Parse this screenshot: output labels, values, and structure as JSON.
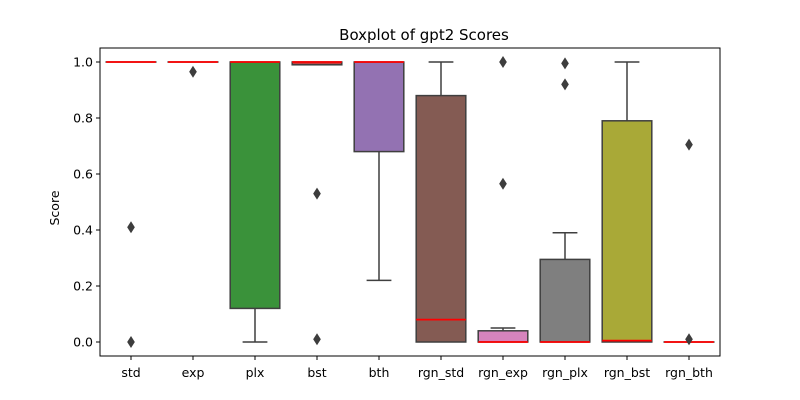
{
  "chart_data": {
    "type": "box",
    "title": "Boxplot of gpt2 Scores",
    "xlabel": "",
    "ylabel": "Score",
    "ylim": [
      -0.05,
      1.05
    ],
    "yticks": [
      "0.0",
      "0.2",
      "0.4",
      "0.6",
      "0.8",
      "1.0"
    ],
    "grid": false,
    "median_color": "#ff0000",
    "outline_color": "#3f3f3f",
    "categories": [
      "std",
      "exp",
      "plx",
      "bst",
      "bth",
      "rgn_std",
      "rgn_exp",
      "rgn_plx",
      "rgn_bst",
      "rgn_bth"
    ],
    "boxes": [
      {
        "name": "std",
        "q1": 1.0,
        "median": 1.0,
        "q3": 1.0,
        "whisker_low": 1.0,
        "whisker_high": 1.0,
        "outliers": [
          0.41,
          0.0
        ],
        "color": "#1f77b4"
      },
      {
        "name": "exp",
        "q1": 1.0,
        "median": 1.0,
        "q3": 1.0,
        "whisker_low": 1.0,
        "whisker_high": 1.0,
        "outliers": [
          0.965
        ],
        "color": "#ff7f0e"
      },
      {
        "name": "plx",
        "q1": 0.12,
        "median": 1.0,
        "q3": 1.0,
        "whisker_low": 0.0,
        "whisker_high": 1.0,
        "outliers": [],
        "color": "#3a923a"
      },
      {
        "name": "bst",
        "q1": 0.99,
        "median": 1.0,
        "q3": 1.0,
        "whisker_low": 0.99,
        "whisker_high": 1.0,
        "outliers": [
          0.53,
          0.01
        ],
        "color": "#c03d3e"
      },
      {
        "name": "bth",
        "q1": 0.68,
        "median": 1.0,
        "q3": 1.0,
        "whisker_low": 0.22,
        "whisker_high": 1.0,
        "outliers": [],
        "color": "#9372b2"
      },
      {
        "name": "rgn_std",
        "q1": 0.0,
        "median": 0.08,
        "q3": 0.88,
        "whisker_low": 0.0,
        "whisker_high": 1.0,
        "outliers": [],
        "color": "#845b53"
      },
      {
        "name": "rgn_exp",
        "q1": 0.0,
        "median": 0.0,
        "q3": 0.04,
        "whisker_low": 0.0,
        "whisker_high": 0.05,
        "outliers": [
          1.0,
          0.565
        ],
        "color": "#d684bd"
      },
      {
        "name": "rgn_plx",
        "q1": 0.0,
        "median": 0.0,
        "q3": 0.295,
        "whisker_low": 0.0,
        "whisker_high": 0.39,
        "outliers": [
          0.995,
          0.92
        ],
        "color": "#7f7f7f"
      },
      {
        "name": "rgn_bst",
        "q1": 0.0,
        "median": 0.005,
        "q3": 0.79,
        "whisker_low": 0.0,
        "whisker_high": 1.0,
        "outliers": [],
        "color": "#a9a937"
      },
      {
        "name": "rgn_bth",
        "q1": 0.0,
        "median": 0.0,
        "q3": 0.0,
        "whisker_low": 0.0,
        "whisker_high": 0.0,
        "outliers": [
          0.705,
          0.01
        ],
        "color": "#2ebdcc"
      }
    ]
  }
}
